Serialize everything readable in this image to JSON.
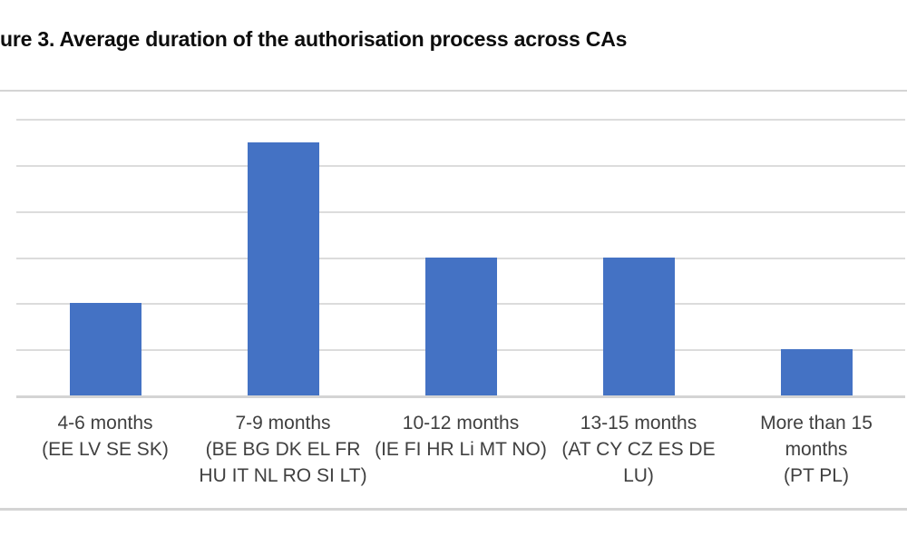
{
  "figure": {
    "title": "ure 3. Average duration of the authorisation process across CAs"
  },
  "chart_data": {
    "type": "bar",
    "title": "ure 3. Average duration of the authorisation process across CAs",
    "categories": [
      "4-6 months\n(EE LV SE SK)",
      "7-9 months\n(BE BG DK EL FR\nHU IT NL RO SI LT)",
      "10-12 months\n(IE FI HR Li MT NO)",
      "13-15 months\n(AT CY CZ ES DE\nLU)",
      "More than 15\nmonths\n(PT PL)"
    ],
    "values": [
      4,
      11,
      6,
      6,
      2
    ],
    "xlabel": "",
    "ylabel": "",
    "ylim": [
      0,
      12
    ],
    "gridline_step": 2,
    "grid": true,
    "legend_position": "none",
    "y_axis_tick_labels_visible": false,
    "colors": {
      "bar": "#4472C4",
      "gridline": "#DCDCDC",
      "baseline": "#D4D4D4",
      "frame_rule": "#D4D4D4",
      "label_text": "#404040",
      "title_text": "#0D0D0D",
      "background": "#FFFFFF"
    }
  }
}
